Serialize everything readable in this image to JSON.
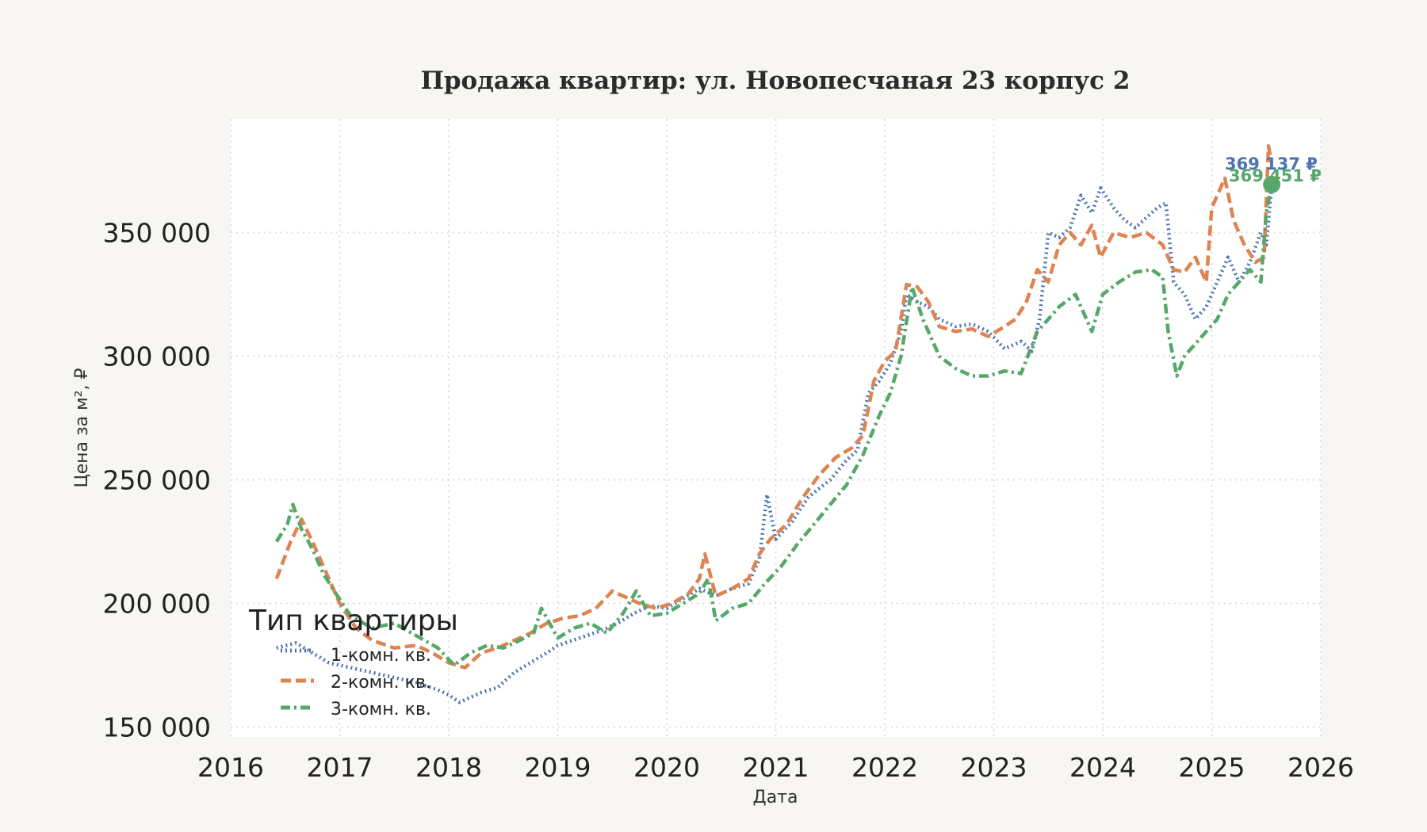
{
  "chart_data": {
    "type": "line",
    "title": "Продажа квартир: ул. Новопесчаная 23 корпус 2",
    "xlabel": "Дата",
    "ylabel": "Цена за м², ₽",
    "xlim": [
      2016.0,
      2026.0
    ],
    "ylim": [
      146000,
      396000
    ],
    "x_ticks": [
      "2016",
      "2017",
      "2018",
      "2019",
      "2020",
      "2021",
      "2022",
      "2023",
      "2024",
      "2025",
      "2026"
    ],
    "y_ticks": [
      "150 000",
      "200 000",
      "250 000",
      "300 000",
      "350 000"
    ],
    "y_tick_values": [
      150000,
      200000,
      250000,
      300000,
      350000
    ],
    "grid": true,
    "legend": {
      "title": "Тип квартиры",
      "placement": "lower-left"
    },
    "series": [
      {
        "name": "1-комн. кв.",
        "color": "#4c72b0",
        "dash": "dotted",
        "x": [
          2016.42,
          2016.6,
          2016.75,
          2016.9,
          2017.1,
          2017.3,
          2017.5,
          2017.7,
          2017.9,
          2018.0,
          2018.1,
          2018.2,
          2018.3,
          2018.45,
          2018.6,
          2018.75,
          2018.9,
          2019.0,
          2019.2,
          2019.4,
          2019.55,
          2019.7,
          2019.85,
          2020.0,
          2020.15,
          2020.3,
          2020.45,
          2020.6,
          2020.75,
          2020.85,
          2020.92,
          2021.0,
          2021.15,
          2021.3,
          2021.5,
          2021.65,
          2021.75,
          2021.85,
          2021.95,
          2022.05,
          2022.15,
          2022.2,
          2022.3,
          2022.4,
          2022.5,
          2022.65,
          2022.8,
          2022.95,
          2023.1,
          2023.25,
          2023.35,
          2023.42,
          2023.5,
          2023.6,
          2023.7,
          2023.8,
          2023.9,
          2023.98,
          2024.1,
          2024.2,
          2024.3,
          2024.4,
          2024.5,
          2024.58,
          2024.65,
          2024.75,
          2024.85,
          2024.95,
          2025.05,
          2025.15,
          2025.25,
          2025.35,
          2025.45,
          2025.5,
          2025.55
        ],
        "y": [
          182000,
          184000,
          180000,
          176000,
          174000,
          172000,
          170000,
          168000,
          165000,
          163000,
          160000,
          162000,
          164000,
          166000,
          172000,
          176000,
          180000,
          183000,
          186000,
          189000,
          192000,
          196000,
          199000,
          198000,
          202000,
          206000,
          203000,
          206000,
          208000,
          218000,
          244000,
          226000,
          233000,
          243000,
          250000,
          258000,
          262000,
          285000,
          290000,
          297000,
          310000,
          325000,
          322000,
          320000,
          315000,
          312000,
          313000,
          310000,
          303000,
          306000,
          302000,
          315000,
          350000,
          348000,
          352000,
          365000,
          358000,
          368000,
          360000,
          355000,
          352000,
          356000,
          360000,
          362000,
          330000,
          325000,
          315000,
          320000,
          330000,
          340000,
          330000,
          338000,
          350000,
          345000,
          369137
        ]
      },
      {
        "name": "2-комн. кв.",
        "color": "#dd8452",
        "dash": "dashed",
        "x": [
          2016.42,
          2016.55,
          2016.65,
          2016.75,
          2016.9,
          2017.0,
          2017.15,
          2017.3,
          2017.5,
          2017.7,
          2017.85,
          2018.0,
          2018.15,
          2018.3,
          2018.45,
          2018.6,
          2018.75,
          2018.9,
          2019.05,
          2019.2,
          2019.35,
          2019.5,
          2019.6,
          2019.75,
          2019.9,
          2020.05,
          2020.2,
          2020.3,
          2020.35,
          2020.45,
          2020.6,
          2020.75,
          2020.85,
          2020.95,
          2021.1,
          2021.25,
          2021.4,
          2021.55,
          2021.7,
          2021.8,
          2021.9,
          2022.0,
          2022.1,
          2022.2,
          2022.3,
          2022.4,
          2022.5,
          2022.65,
          2022.8,
          2022.95,
          2023.1,
          2023.2,
          2023.3,
          2023.4,
          2023.5,
          2023.6,
          2023.7,
          2023.8,
          2023.9,
          2023.98,
          2024.1,
          2024.25,
          2024.4,
          2024.55,
          2024.65,
          2024.75,
          2024.85,
          2024.95,
          2025.0,
          2025.05,
          2025.12,
          2025.2,
          2025.3,
          2025.4,
          2025.48,
          2025.52,
          2025.55
        ],
        "y": [
          210000,
          225000,
          234000,
          225000,
          210000,
          200000,
          190000,
          185000,
          182000,
          183000,
          180000,
          176000,
          174000,
          180000,
          182000,
          185000,
          188000,
          192000,
          194000,
          195000,
          198000,
          205000,
          203000,
          200000,
          198000,
          200000,
          204000,
          210000,
          220000,
          203000,
          206000,
          210000,
          220000,
          226000,
          232000,
          243000,
          252000,
          259000,
          263000,
          268000,
          290000,
          298000,
          302000,
          329000,
          328000,
          322000,
          312000,
          310000,
          311000,
          308000,
          312000,
          315000,
          322000,
          335000,
          330000,
          345000,
          350000,
          345000,
          353000,
          340000,
          350000,
          348000,
          350000,
          345000,
          335000,
          334000,
          340000,
          330000,
          360000,
          365000,
          372000,
          355000,
          345000,
          338000,
          340000,
          385000,
          378000
        ]
      },
      {
        "name": "3-комн. кв.",
        "color": "#55a868",
        "dash": "dashdot",
        "x": [
          2016.42,
          2016.52,
          2016.57,
          2016.65,
          2016.75,
          2016.85,
          2016.95,
          2017.1,
          2017.3,
          2017.5,
          2017.7,
          2017.9,
          2018.05,
          2018.2,
          2018.35,
          2018.5,
          2018.65,
          2018.78,
          2018.85,
          2019.0,
          2019.15,
          2019.3,
          2019.45,
          2019.6,
          2019.72,
          2019.85,
          2020.0,
          2020.15,
          2020.3,
          2020.38,
          2020.45,
          2020.6,
          2020.75,
          2020.9,
          2021.05,
          2021.2,
          2021.35,
          2021.5,
          2021.65,
          2021.8,
          2021.95,
          2022.05,
          2022.15,
          2022.25,
          2022.35,
          2022.5,
          2022.65,
          2022.8,
          2022.95,
          2023.1,
          2023.25,
          2023.4,
          2023.5,
          2023.6,
          2023.75,
          2023.9,
          2024.0,
          2024.15,
          2024.3,
          2024.45,
          2024.55,
          2024.6,
          2024.68,
          2024.75,
          2024.85,
          2024.95,
          2025.05,
          2025.15,
          2025.25,
          2025.35,
          2025.45,
          2025.5,
          2025.55
        ],
        "y": [
          225000,
          232000,
          240000,
          230000,
          222000,
          212000,
          205000,
          195000,
          190000,
          192000,
          187000,
          182000,
          175000,
          180000,
          183000,
          182000,
          185000,
          188000,
          198000,
          186000,
          190000,
          192000,
          188000,
          196000,
          205000,
          195000,
          196000,
          200000,
          204000,
          210000,
          193000,
          198000,
          200000,
          208000,
          215000,
          224000,
          232000,
          240000,
          248000,
          260000,
          276000,
          285000,
          300000,
          328000,
          315000,
          300000,
          295000,
          292000,
          292000,
          294000,
          293000,
          310000,
          315000,
          320000,
          325000,
          310000,
          325000,
          330000,
          334000,
          335000,
          332000,
          310000,
          292000,
          300000,
          305000,
          310000,
          315000,
          325000,
          330000,
          335000,
          330000,
          358000,
          369451
        ]
      }
    ],
    "annotations": [
      {
        "text": "369 137 ₽",
        "color": "#4c72b0"
      },
      {
        "text": "369 451 ₽",
        "color": "#55a868"
      }
    ],
    "end_marker": {
      "x": 2025.55,
      "y": 369451,
      "color": "#55a868"
    }
  }
}
